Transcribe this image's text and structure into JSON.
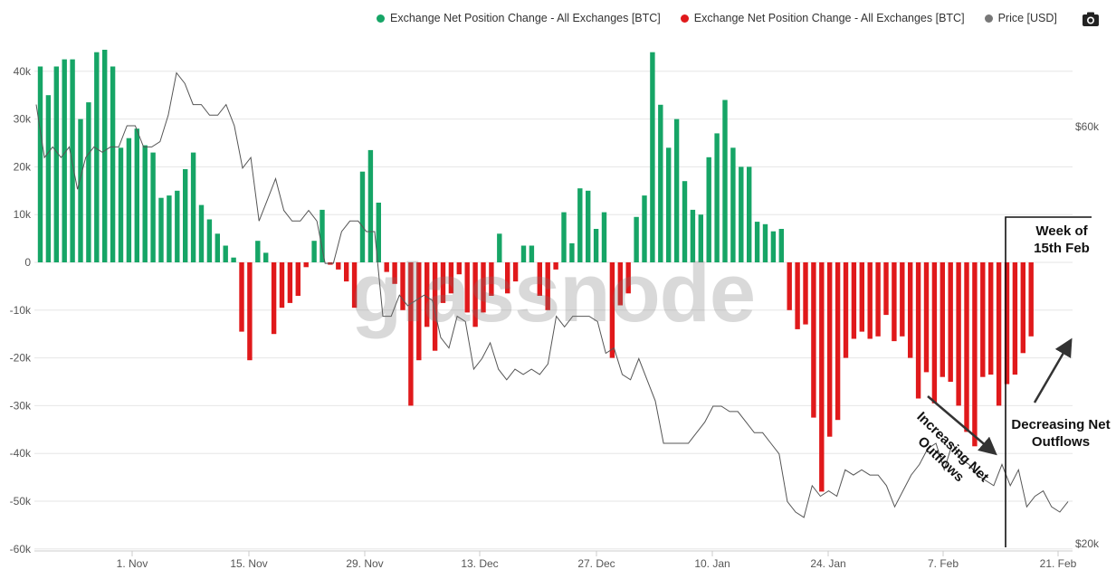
{
  "legend": [
    {
      "label": "Exchange Net Position Change - All Exchanges [BTC]",
      "color": "#16a566"
    },
    {
      "label": "Exchange Net Position Change - All Exchanges [BTC]",
      "color": "#e0191b"
    },
    {
      "label": "Price [USD]",
      "color": "#777777"
    }
  ],
  "watermark": "glassnode",
  "toolbar": {
    "camera_icon": "camera-icon"
  },
  "annotations": {
    "week": "Week of 15th Feb",
    "increasing": "Increasing Net Outflows",
    "decreasing": "Decreasing Net Outflows"
  },
  "chart_data": {
    "type": "bar",
    "xlabel": "",
    "ylabel": "",
    "ylim": [
      -60000,
      40000
    ],
    "y_ticks": [
      "40k",
      "30k",
      "20k",
      "10k",
      "0",
      "-10k",
      "-20k",
      "-30k",
      "-40k",
      "-50k",
      "-60k"
    ],
    "y2_ticks": [
      "$60k",
      "$20k"
    ],
    "x_ticks": [
      "1. Nov",
      "15. Nov",
      "29. Nov",
      "13. Dec",
      "27. Dec",
      "10. Jan",
      "24. Jan",
      "7. Feb",
      "21. Feb"
    ],
    "grid": true,
    "legend_position": "top-right",
    "colors": {
      "positive": "#16a566",
      "negative": "#e0191b",
      "price": "#777777"
    },
    "series": [
      {
        "name": "Exchange Net Position Change - All Exchanges [BTC]",
        "values": [
          41000,
          35000,
          41000,
          42500,
          42500,
          30000,
          33500,
          44000,
          44500,
          41000,
          24000,
          26000,
          28000,
          24500,
          23000,
          13500,
          14000,
          15000,
          19500,
          23000,
          12000,
          9000,
          6000,
          3500,
          1000,
          -14500,
          -20500,
          4500,
          2000,
          -15000,
          -9500,
          -8500,
          -7000,
          -1000,
          4500,
          11000,
          -500,
          -1500,
          -4000,
          -9500,
          19000,
          23500,
          12500,
          -2000,
          -4500,
          -10000,
          -30000,
          -20500,
          -13500,
          -18500,
          -8500,
          -6500,
          -2500,
          -10500,
          -13500,
          -10500,
          -7000,
          6000,
          -6500,
          -4000,
          3500,
          3500,
          -7000,
          -10000,
          -1500,
          10500,
          4000,
          15500,
          15000,
          7000,
          10500,
          -20000,
          -9000,
          -6500,
          9500,
          14000,
          44000,
          33000,
          24000,
          30000,
          17000,
          11000,
          10000,
          22000,
          27000,
          34000,
          24000,
          20000,
          20000,
          8500,
          8000,
          6500,
          7000,
          -10000,
          -14000,
          -13000,
          -32500,
          -48000,
          -36500,
          -33000,
          -20000,
          -16000,
          -14500,
          -16000,
          -15500,
          -11000,
          -16500,
          -15500,
          -20000,
          -28500,
          -23000,
          -29500,
          -24000,
          -25000,
          -30000,
          -35500,
          -38500,
          -24000,
          -23500,
          -30000,
          -25500,
          -23500,
          -19000,
          -15500
        ],
        "color_rule": "green when positive, red when negative"
      },
      {
        "name": "Price [USD]",
        "axis": "right",
        "values": [
          62000,
          57000,
          58000,
          57000,
          58000,
          54000,
          57000,
          58000,
          57500,
          58000,
          58000,
          60000,
          60000,
          58000,
          58000,
          58500,
          61000,
          65000,
          64000,
          62000,
          62000,
          61000,
          61000,
          62000,
          60000,
          56000,
          57000,
          51000,
          53000,
          55000,
          52000,
          51000,
          51000,
          52000,
          51000,
          47000,
          47000,
          50000,
          51000,
          51000,
          50000,
          50000,
          42000,
          42000,
          44000,
          43000,
          43500,
          44000,
          43500,
          40000,
          39000,
          42000,
          41500,
          37000,
          38000,
          39500,
          37000,
          36000,
          37000,
          36500,
          37000,
          36500,
          37500,
          42000,
          41000,
          42000,
          42000,
          42000,
          41500,
          38500,
          39000,
          36500,
          36000,
          38000,
          36000,
          34000,
          30000,
          30000,
          30000,
          30000,
          31000,
          32000,
          33500,
          33500,
          33000,
          33000,
          32000,
          31000,
          31000,
          30000,
          29000,
          24500,
          23500,
          23000,
          26000,
          25000,
          25500,
          25000,
          27500,
          27000,
          27500,
          27000,
          27000,
          26000,
          24000,
          25500,
          27000,
          28000,
          29500,
          30000,
          27500,
          30000,
          28500,
          28000,
          27000,
          26500,
          26000,
          28000,
          26000,
          27500,
          24000,
          25000,
          25500,
          24000,
          23500,
          24500
        ]
      }
    ]
  }
}
